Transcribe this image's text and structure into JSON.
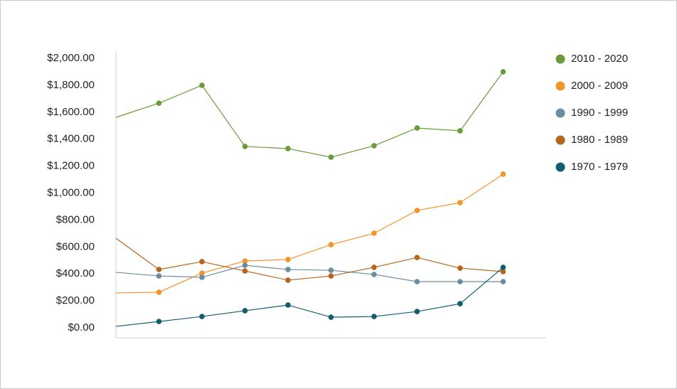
{
  "chart_data": {
    "type": "line",
    "categories": [
      null,
      null,
      null,
      null,
      null,
      null,
      null,
      null,
      null,
      null
    ],
    "series": [
      {
        "name": "2010 - 2020",
        "color": "#6a9a3a",
        "values": [
          1562,
          1667,
          1800,
          1346,
          1330,
          1266,
          1351,
          1483,
          1462,
          1900
        ]
      },
      {
        "name": "2000 - 2009",
        "color": "#f0962a",
        "values": [
          259,
          264,
          406,
          496,
          507,
          617,
          702,
          871,
          929,
          1140
        ]
      },
      {
        "name": "1990 - 1999",
        "color": "#6b8e9e",
        "values": [
          412,
          385,
          375,
          464,
          433,
          427,
          396,
          343,
          343,
          343
        ]
      },
      {
        "name": "1980 - 1989",
        "color": "#b5651d",
        "values": [
          665,
          433,
          491,
          422,
          354,
          385,
          449,
          522,
          443,
          417
        ]
      },
      {
        "name": "1970 - 1979",
        "color": "#135e6e",
        "values": [
          11,
          47,
          84,
          127,
          169,
          79,
          84,
          121,
          179,
          449
        ]
      }
    ],
    "ylim": [
      0,
      2000
    ],
    "yticks": [
      {
        "value": 0,
        "label": "$0.00"
      },
      {
        "value": 200,
        "label": "$200.00"
      },
      {
        "value": 400,
        "label": "$400.00"
      },
      {
        "value": 600,
        "label": "$600.00"
      },
      {
        "value": 800,
        "label": "$800.00"
      },
      {
        "value": 1000,
        "label": "$1,000.00"
      },
      {
        "value": 1200,
        "label": "$1,200.00"
      },
      {
        "value": 1400,
        "label": "$1,400.00"
      },
      {
        "value": 1600,
        "label": "$1,600.00"
      },
      {
        "value": 1800,
        "label": "$1,800.00"
      },
      {
        "value": 2000,
        "label": "$2,000.00"
      }
    ],
    "grid": false
  }
}
